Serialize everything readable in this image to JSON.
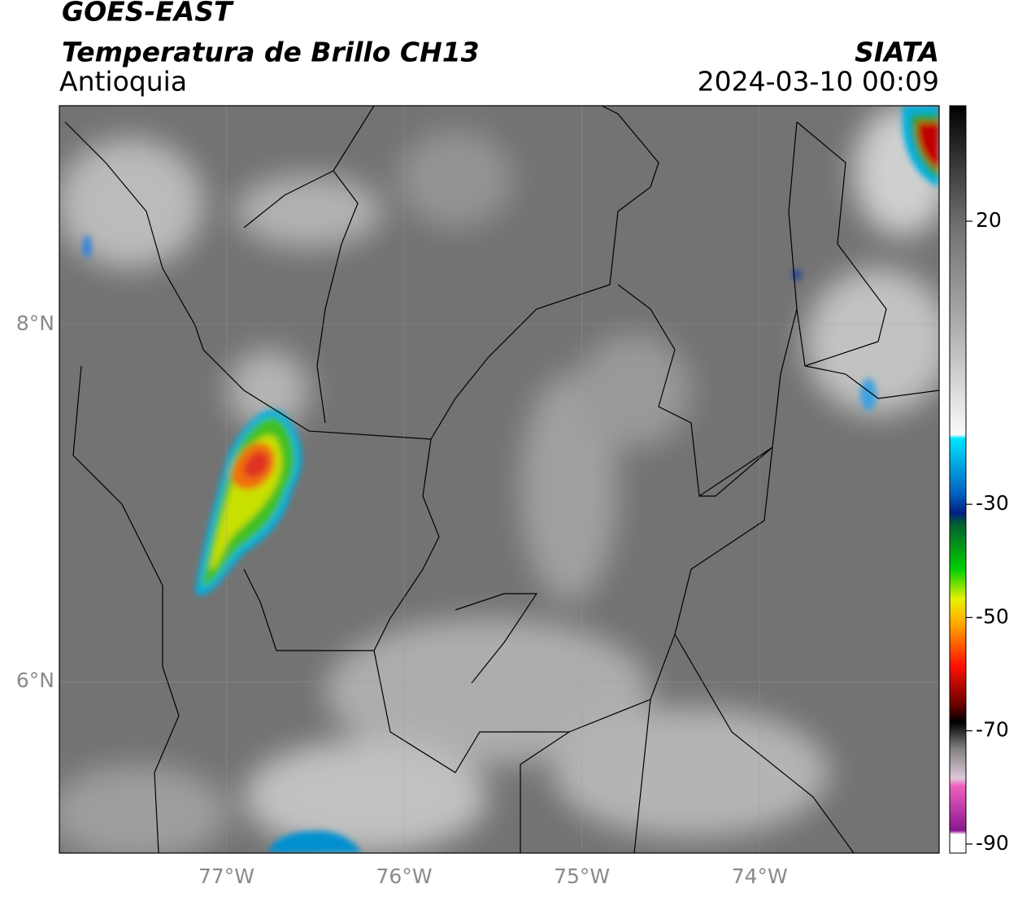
{
  "header": {
    "title": "GOES-EAST",
    "subtitle": "Temperatura de Brillo CH13",
    "region": "Antioquia",
    "agency": "SIATA",
    "datetime": "2024-03-10 00:09"
  },
  "map": {
    "xlim": [
      -77.94,
      -72.99
    ],
    "ylim": [
      5.04,
      9.225
    ],
    "xticks": [
      {
        "value": -77,
        "label": "77°W"
      },
      {
        "value": -76,
        "label": "76°W"
      },
      {
        "value": -75,
        "label": "75°W"
      },
      {
        "value": -74,
        "label": "74°W"
      }
    ],
    "yticks": [
      {
        "value": 8,
        "label": "8°N"
      },
      {
        "value": 6,
        "label": "6°N"
      }
    ],
    "grid": true
  },
  "colorbar": {
    "lim": [
      -91.6,
      40.4
    ],
    "ticks": [
      20,
      -30,
      -50,
      -70,
      -90
    ]
  }
}
